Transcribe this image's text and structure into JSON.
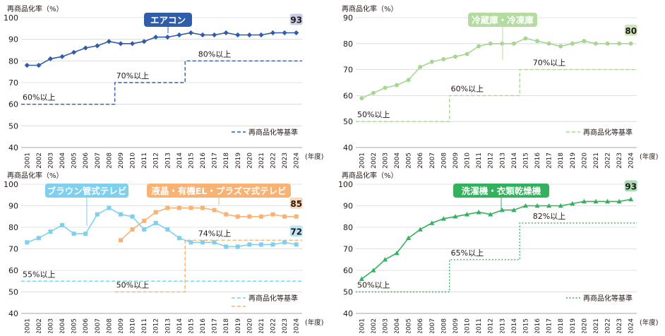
{
  "common": {
    "ylabel": "再商品化率（%）",
    "xunit": "(年度)",
    "legend_label": "再商品化等基準"
  },
  "chart_data": [
    {
      "type": "line",
      "title": "エアコン",
      "title_color": "#2f5daa",
      "color": "#2f5daa",
      "marker": "diamond",
      "ylim": [
        40,
        100
      ],
      "yticks": [
        40,
        50,
        60,
        70,
        80,
        90,
        100
      ],
      "x": [
        2001,
        2002,
        2003,
        2004,
        2005,
        2006,
        2007,
        2008,
        2009,
        2010,
        2011,
        2012,
        2013,
        2014,
        2015,
        2016,
        2017,
        2018,
        2019,
        2020,
        2021,
        2022,
        2023,
        2024
      ],
      "series": [
        {
          "name": "エアコン",
          "values": [
            78,
            78,
            81,
            82,
            84,
            86,
            87,
            89,
            88,
            88,
            89,
            91,
            91,
            92,
            93,
            92,
            92,
            93,
            92,
            92,
            92,
            93,
            93,
            93
          ],
          "end_label": "93",
          "end_badge_color": "#c5cde6"
        }
      ],
      "threshold": {
        "name": "再商品化等基準",
        "color": "#2f5daa",
        "steps": [
          {
            "from": 2001,
            "to": 2008,
            "value": 60
          },
          {
            "from": 2009,
            "to": 2014,
            "value": 70
          },
          {
            "from": 2015,
            "to": 2024,
            "value": 80
          }
        ],
        "labels": [
          {
            "text": "60%以上",
            "x": 2001,
            "value": 60
          },
          {
            "text": "70%以上",
            "x": 2009,
            "value": 70
          },
          {
            "text": "80%以上",
            "x": 2016,
            "value": 80
          }
        ]
      },
      "legend_position": "bottom-right"
    },
    {
      "type": "line",
      "title": "冷蔵庫・冷凍庫",
      "title_color": "#b4dca0",
      "color": "#a8d690",
      "marker": "circle",
      "ylim": [
        40,
        90
      ],
      "yticks": [
        40,
        50,
        60,
        70,
        80,
        90
      ],
      "x": [
        2001,
        2002,
        2003,
        2004,
        2005,
        2006,
        2007,
        2008,
        2009,
        2010,
        2011,
        2012,
        2013,
        2014,
        2015,
        2016,
        2017,
        2018,
        2019,
        2020,
        2021,
        2022,
        2023,
        2024
      ],
      "series": [
        {
          "name": "冷蔵庫・冷凍庫",
          "values": [
            59,
            61,
            63,
            64,
            66,
            71,
            73,
            74,
            75,
            76,
            79,
            80,
            80,
            80,
            82,
            81,
            80,
            79,
            80,
            81,
            80,
            80,
            80,
            80
          ],
          "end_label": "80",
          "end_badge_color": "#cde6bd"
        }
      ],
      "threshold": {
        "name": "再商品化等基準",
        "color": "#a8d690",
        "steps": [
          {
            "from": 2001,
            "to": 2008,
            "value": 50
          },
          {
            "from": 2009,
            "to": 2014,
            "value": 60
          },
          {
            "from": 2015,
            "to": 2024,
            "value": 70
          }
        ],
        "labels": [
          {
            "text": "50%以上",
            "x": 2001,
            "value": 50
          },
          {
            "text": "60%以上",
            "x": 2009,
            "value": 60
          },
          {
            "text": "70%以上",
            "x": 2016,
            "value": 70
          }
        ]
      },
      "legend_position": "bottom-right"
    },
    {
      "type": "line",
      "title": "",
      "ylim": [
        40,
        100
      ],
      "yticks": [
        40,
        50,
        60,
        70,
        80,
        90,
        100
      ],
      "x": [
        2001,
        2002,
        2003,
        2004,
        2005,
        2006,
        2007,
        2008,
        2009,
        2010,
        2011,
        2012,
        2013,
        2014,
        2015,
        2016,
        2017,
        2018,
        2019,
        2020,
        2021,
        2022,
        2023,
        2024
      ],
      "series": [
        {
          "name": "ブラウン管式テレビ",
          "color": "#7fcfee",
          "marker": "square",
          "values": [
            73,
            75,
            78,
            81,
            77,
            77,
            86,
            89,
            86,
            85,
            79,
            82,
            79,
            75,
            73,
            73,
            73,
            71,
            71,
            72,
            72,
            72,
            73,
            72
          ],
          "end_label": "72",
          "end_badge_color": "#bfe6f7",
          "title_color": "#7fcfee"
        },
        {
          "name": "液晶・有機EL・プラズマ式テレビ",
          "color": "#f7b274",
          "marker": "square",
          "values": [
            null,
            null,
            null,
            null,
            null,
            null,
            null,
            null,
            74,
            79,
            83,
            87,
            89,
            89,
            89,
            89,
            88,
            86,
            85,
            85,
            85,
            86,
            85,
            85
          ],
          "end_label": "85",
          "end_badge_color": "#fbd7b4",
          "title_color": "#f7b274"
        }
      ],
      "thresholds": [
        {
          "name": "再商品化等基準",
          "color": "#7fcfee",
          "steps": [
            {
              "from": 2001,
              "to": 2024,
              "value": 55
            }
          ]
        },
        {
          "name": "再商品化等基準",
          "color": "#f7b274",
          "steps": [
            {
              "from": 2009,
              "to": 2014,
              "value": 50
            },
            {
              "from": 2015,
              "to": 2024,
              "value": 74
            }
          ]
        }
      ],
      "labels": [
        {
          "text": "55%以上",
          "x": 2001,
          "value": 55
        },
        {
          "text": "50%以上",
          "x": 2009,
          "value": 50
        },
        {
          "text": "74%以上",
          "x": 2016,
          "value": 74
        }
      ],
      "legend_position": "bottom-right"
    },
    {
      "type": "line",
      "title": "洗濯機・衣類乾燥機",
      "title_color": "#33b25d",
      "color": "#33b25d",
      "marker": "triangle",
      "ylim": [
        40,
        100
      ],
      "yticks": [
        40,
        50,
        60,
        70,
        80,
        90,
        100
      ],
      "x": [
        2001,
        2002,
        2003,
        2004,
        2005,
        2006,
        2007,
        2008,
        2009,
        2010,
        2011,
        2012,
        2013,
        2014,
        2015,
        2016,
        2017,
        2018,
        2019,
        2020,
        2021,
        2022,
        2023,
        2024
      ],
      "series": [
        {
          "name": "洗濯機・衣類乾燥機",
          "values": [
            56,
            60,
            65,
            68,
            75,
            79,
            82,
            84,
            85,
            86,
            87,
            86,
            88,
            88,
            90,
            90,
            90,
            90,
            91,
            92,
            92,
            92,
            92,
            93
          ],
          "end_label": "93",
          "end_badge_color": "#a9dcb7"
        }
      ],
      "threshold": {
        "name": "再商品化等基準",
        "color": "#33b25d",
        "dash": "dot",
        "steps": [
          {
            "from": 2001,
            "to": 2008,
            "value": 50
          },
          {
            "from": 2009,
            "to": 2014,
            "value": 65
          },
          {
            "from": 2015,
            "to": 2024,
            "value": 82
          }
        ],
        "labels": [
          {
            "text": "50%以上",
            "x": 2001,
            "value": 50
          },
          {
            "text": "65%以上",
            "x": 2009,
            "value": 65
          },
          {
            "text": "82%以上",
            "x": 2016,
            "value": 82
          }
        ]
      },
      "legend_position": "bottom-right"
    }
  ]
}
